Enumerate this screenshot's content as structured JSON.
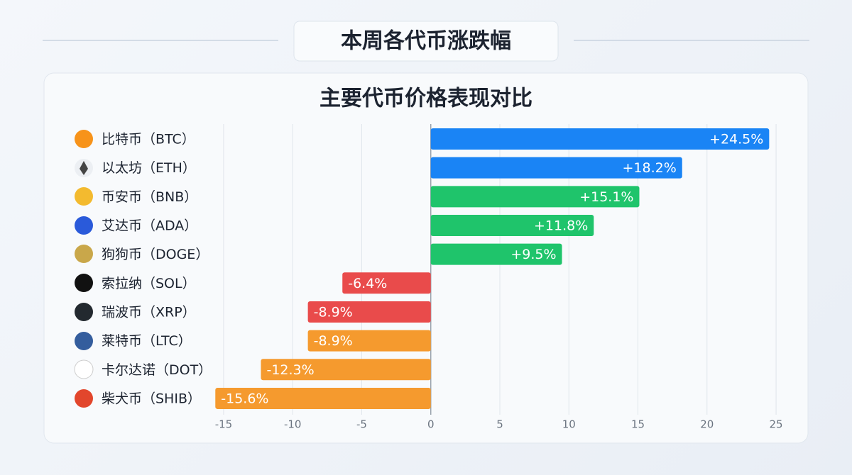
{
  "chart_data": {
    "type": "barh",
    "header": "本周各代币涨跌幅",
    "title": "主要代币价格表现对比",
    "categories": [
      "比特币（BTC）",
      "以太坊（ETH）",
      "币安币（BNB）",
      "艾达币（ADA）",
      "狗狗币（DOGE）",
      "索拉纳（SOL）",
      "瑞波币（XRP）",
      "莱特币（LTC）",
      "卡尔达诺（DOT）",
      "柴犬币（SHIB）"
    ],
    "values": [
      24.5,
      18.2,
      15.1,
      11.8,
      9.5,
      -6.4,
      -8.9,
      -8.9,
      -12.3,
      -15.6
    ],
    "value_labels": [
      "+24.5%",
      "+18.2%",
      "+15.1%",
      "+11.8%",
      "+9.5%",
      "-6.4%",
      "-8.9%",
      "-8.9%",
      "-12.3%",
      "-15.6%"
    ],
    "colors": [
      "#1a84f5",
      "#1a84f5",
      "#1fc46b",
      "#1fc46b",
      "#1fc46b",
      "#e94b4b",
      "#e94b4b",
      "#f59a2e",
      "#f59a2e",
      "#f59a2e"
    ],
    "xlim": [
      -16,
      26
    ],
    "xticks": [
      -15,
      -10,
      -5,
      0,
      5,
      10,
      15,
      20,
      25
    ],
    "grid": true
  }
}
